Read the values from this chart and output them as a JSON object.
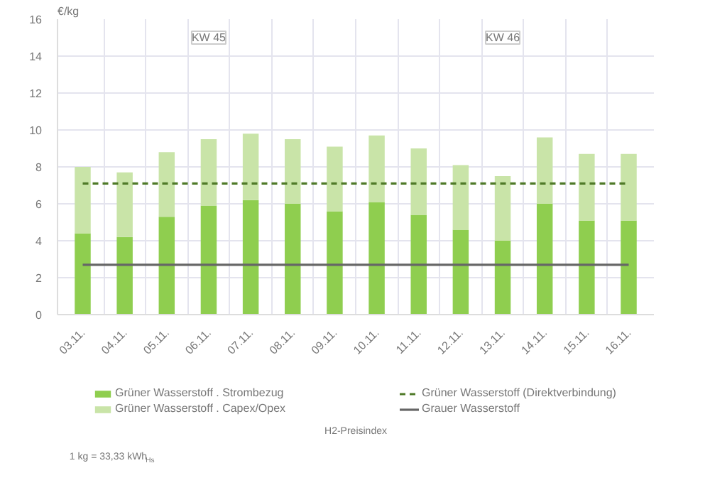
{
  "chart_data": {
    "type": "bar",
    "stacked": true,
    "ylabel": "€/kg",
    "categories": [
      "03.11.",
      "04.11.",
      "05.11.",
      "06.11.",
      "07.11.",
      "08.11.",
      "09.11.",
      "10.11.",
      "11.11.",
      "12.11.",
      "13.11.",
      "14.11.",
      "15.11.",
      "16.11."
    ],
    "series": [
      {
        "name": "Grüner Wasserstoff . Strombezug",
        "color": "#8fce4f",
        "values": [
          4.4,
          4.2,
          5.3,
          5.9,
          6.2,
          6.0,
          5.6,
          6.1,
          5.4,
          4.6,
          4.0,
          6.0,
          5.1,
          5.1
        ]
      },
      {
        "name": "Grüner Wasserstoff . Capex/Opex",
        "color": "#c9e4a8",
        "values": [
          3.6,
          3.5,
          3.5,
          3.6,
          3.6,
          3.5,
          3.5,
          3.6,
          3.6,
          3.5,
          3.5,
          3.6,
          3.6,
          3.6
        ]
      },
      {
        "name": "Grüner Wasserstoff (Direktverbindung)",
        "type": "line",
        "line_style": "dashed",
        "color": "#4f7a28",
        "values": [
          7.1,
          7.1,
          7.1,
          7.1,
          7.1,
          7.1,
          7.1,
          7.1,
          7.1,
          7.1,
          7.1,
          7.1,
          7.1,
          7.1
        ]
      },
      {
        "name": "Grauer Wasserstoff",
        "type": "line",
        "line_style": "solid",
        "color": "#666666",
        "values": [
          2.7,
          2.7,
          2.7,
          2.7,
          2.7,
          2.7,
          2.7,
          2.7,
          2.7,
          2.7,
          2.7,
          2.7,
          2.7,
          2.7
        ]
      }
    ],
    "ylim": [
      0,
      16
    ],
    "yticks": [
      0,
      2,
      4,
      6,
      8,
      10,
      12,
      14,
      16
    ],
    "grid": true,
    "legend": "bottom",
    "annotations": [
      {
        "text": "KW 45",
        "x": "06.11.",
        "y": 15
      },
      {
        "text": "KW 46",
        "x": "13.11.",
        "y": 15
      },
      "H2-Preisindex",
      "1 kg = 33,33 kWh$_{Hs}$"
    ]
  }
}
